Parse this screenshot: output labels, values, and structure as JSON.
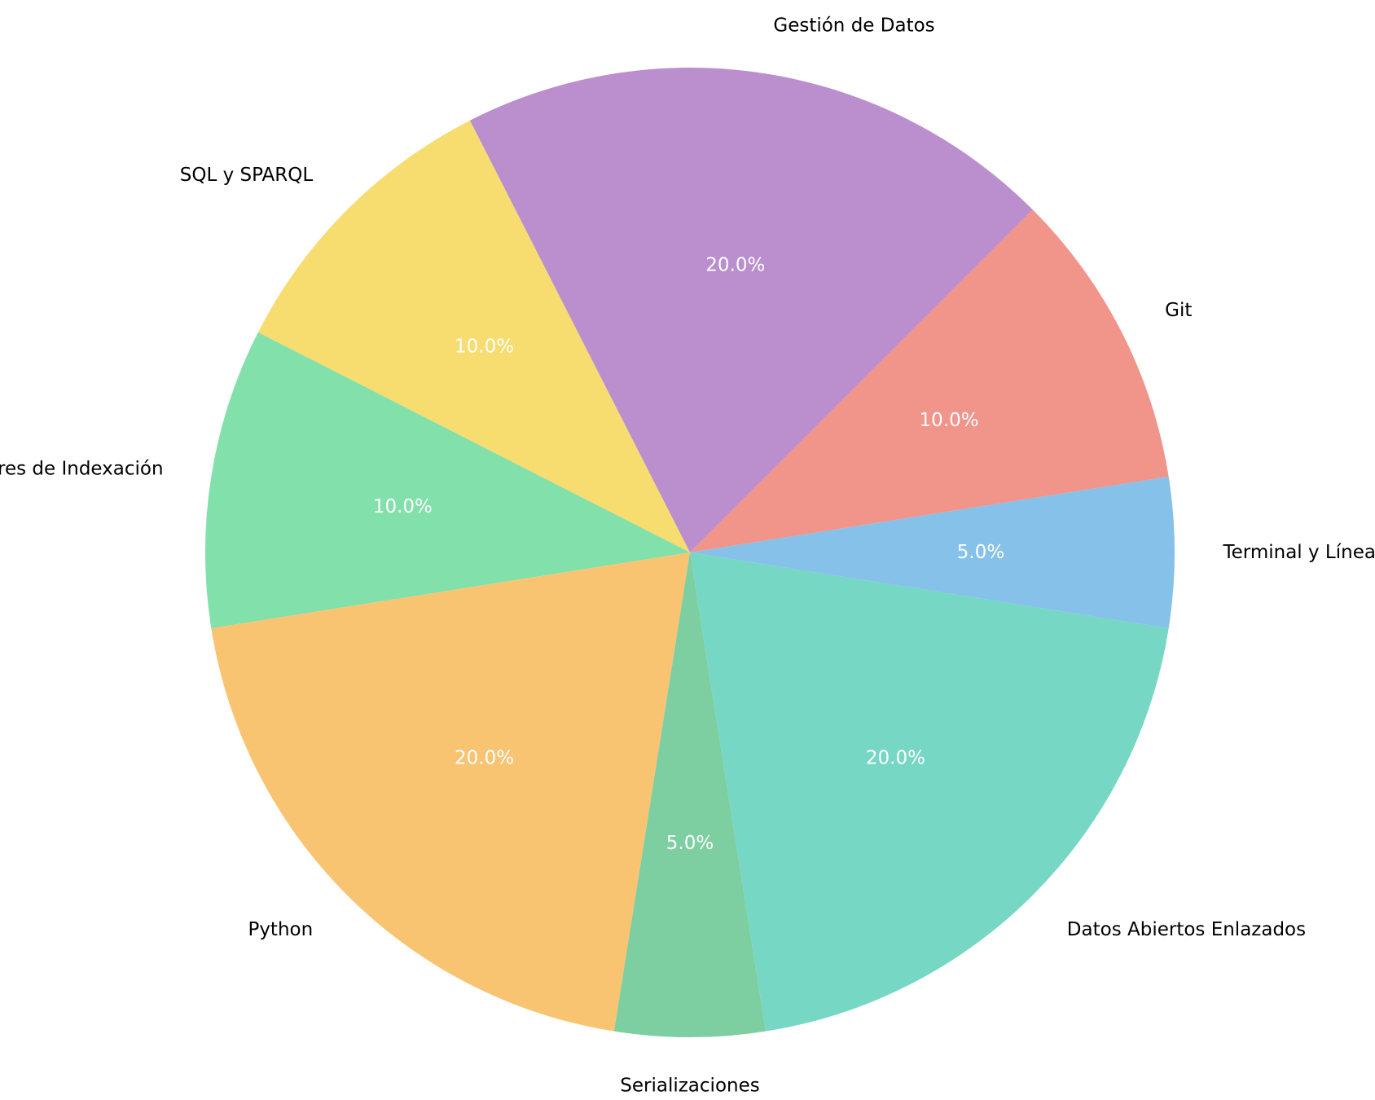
{
  "chart_data": {
    "type": "pie",
    "title": "",
    "start_angle_deg": 45,
    "direction": "counterclockwise",
    "slices": [
      {
        "label": "Gestión de Datos",
        "value": 20,
        "pct_text": "20.0%",
        "color": "#BB8FCE"
      },
      {
        "label": "SQL y SPARQL",
        "value": 10,
        "pct_text": "10.0%",
        "color": "#F7DC6F"
      },
      {
        "label": "Almacenes de Documentos y Motores de Indexación",
        "value": 10,
        "pct_text": "10.0%",
        "color": "#82E0AA"
      },
      {
        "label": "Python",
        "value": 20,
        "pct_text": "20.0%",
        "color": "#F8C471"
      },
      {
        "label": "Serializaciones",
        "value": 5,
        "pct_text": "5.0%",
        "color": "#7DCEA0"
      },
      {
        "label": "Datos Abiertos Enlazados",
        "value": 20,
        "pct_text": "20.0%",
        "color": "#76D7C4"
      },
      {
        "label": "Terminal y Línea de Comandos",
        "value": 5,
        "pct_text": "5.0%",
        "color": "#85C1E9"
      },
      {
        "label": "Git",
        "value": 10,
        "pct_text": "10.0%",
        "color": "#F1948A"
      }
    ]
  }
}
